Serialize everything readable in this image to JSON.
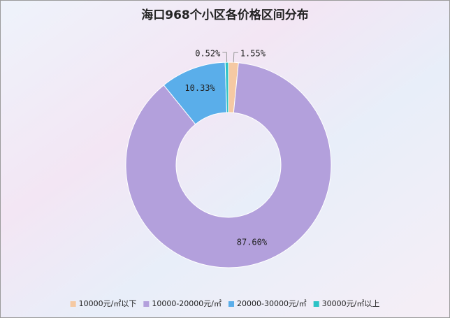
{
  "chart_data": {
    "type": "donut",
    "title": "海口968个小区各价格区间分布",
    "categories": [
      "10000元/㎡以下",
      "10000-20000元/㎡",
      "20000-30000元/㎡",
      "30000元/㎡以上"
    ],
    "values": [
      1.55,
      87.6,
      10.33,
      0.52
    ],
    "value_labels": [
      "1.55%",
      "87.60%",
      "10.33%",
      "0.52%"
    ],
    "colors": [
      "#f5c9a3",
      "#b3a0dc",
      "#5aaeea",
      "#2cc3c6"
    ],
    "legend": "bottom"
  }
}
